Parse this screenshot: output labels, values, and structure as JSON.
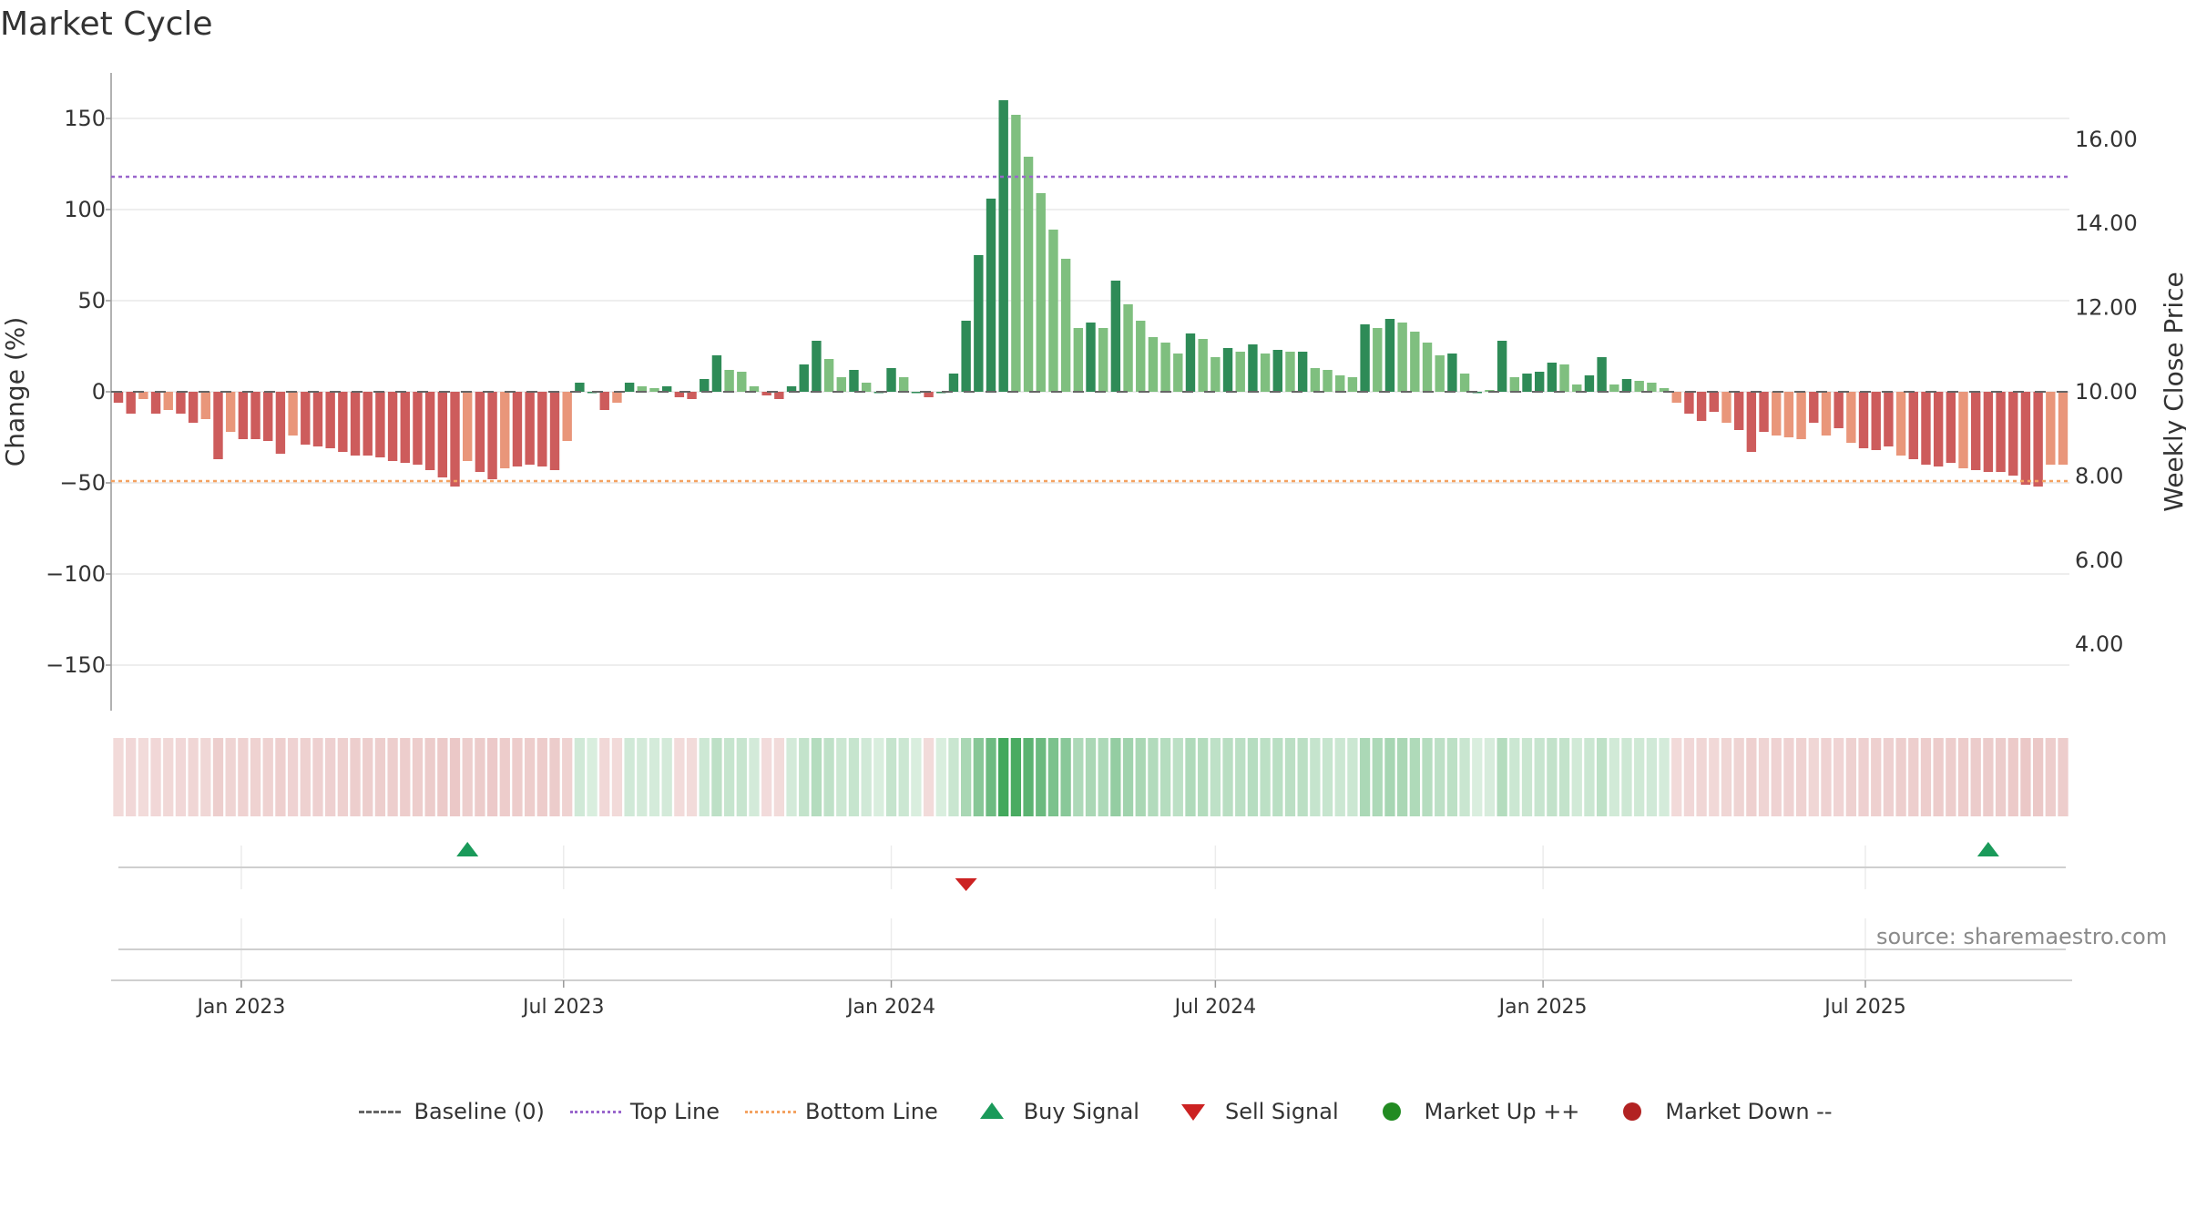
{
  "title": "Market Cycle",
  "source": "source: sharemaestro.com",
  "chart_data": {
    "type": "bar",
    "title": "Market Cycle",
    "ylabel": "Change (%)",
    "y2label": "Weekly Close Price",
    "ylim": [
      -175,
      175
    ],
    "y2lim": [
      2.6,
      17.25
    ],
    "yticks": [
      150,
      100,
      50,
      0,
      -50,
      -100,
      -150
    ],
    "ytick_labels": [
      "150",
      "100",
      "50",
      "0",
      "−100",
      "−150"
    ],
    "ytick_labels_all": [
      "150",
      "100",
      "50",
      "0",
      "−50",
      "−100",
      "−150"
    ],
    "y2ticks": [
      16,
      14,
      12,
      10,
      8,
      6,
      4
    ],
    "y2tick_labels": [
      "16.00",
      "14.00",
      "12.00",
      "10.00",
      "8.00",
      "6.00",
      "4.00"
    ],
    "x_start": "2022-10-24",
    "x_end": "2025-10-06",
    "x_step_days": 7,
    "xtick_dates": [
      "2023-01-01",
      "2023-07-01",
      "2024-01-01",
      "2024-07-01",
      "2025-01-01",
      "2025-07-01"
    ],
    "xtick_labels": [
      "Jan 2023",
      "Jul 2023",
      "Jan 2024",
      "Jul 2024",
      "Jan 2025",
      "Jul 2025"
    ],
    "top_line": 118,
    "bottom_line": -49,
    "baseline": 0,
    "values": [
      -6,
      -12,
      -4,
      -12,
      -10,
      -12,
      -17,
      -15,
      -37,
      -22,
      -26,
      -26,
      -27,
      -34,
      -24,
      -29,
      -30,
      -31,
      -33,
      -35,
      -35,
      -36,
      -38,
      -39,
      -40,
      -43,
      -47,
      -52,
      -38,
      -44,
      -48,
      -42,
      -41,
      -40,
      -41,
      -43,
      -27,
      5,
      0,
      -10,
      -6,
      5,
      3,
      2,
      3,
      -3,
      -4,
      7,
      20,
      12,
      11,
      3,
      -2,
      -4,
      3,
      15,
      28,
      18,
      8,
      12,
      5,
      0,
      13,
      8,
      0,
      -3,
      0,
      10,
      39,
      75,
      106,
      160,
      152,
      129,
      109,
      89,
      73,
      35,
      38,
      35,
      61,
      48,
      39,
      30,
      27,
      21,
      32,
      29,
      19,
      24,
      22,
      26,
      21,
      23,
      22,
      22,
      13,
      12,
      9,
      8,
      37,
      35,
      40,
      38,
      33,
      27,
      20,
      21,
      10,
      0,
      1,
      28,
      8,
      10,
      11,
      16,
      15,
      4,
      9,
      19,
      4,
      7,
      6,
      5,
      2,
      -6,
      -12,
      -16,
      -11,
      -17,
      -21,
      -33,
      -22,
      -24,
      -25,
      -26,
      -17,
      -24,
      -20,
      -28,
      -31,
      -32,
      -30,
      -35,
      -37,
      -40,
      -41,
      -39,
      -42,
      -43,
      -44,
      -44,
      -46,
      -51,
      -52,
      -40,
      -40
    ],
    "bar_style": [
      1,
      1,
      2,
      1,
      2,
      1,
      1,
      2,
      1,
      2,
      1,
      1,
      1,
      1,
      2,
      1,
      1,
      1,
      1,
      1,
      1,
      1,
      1,
      1,
      1,
      1,
      1,
      1,
      2,
      1,
      1,
      2,
      1,
      1,
      1,
      1,
      2,
      1,
      1,
      1,
      2,
      1,
      2,
      2,
      1,
      1,
      1,
      1,
      1,
      2,
      2,
      2,
      1,
      1,
      1,
      1,
      1,
      2,
      2,
      1,
      2,
      1,
      1,
      2,
      1,
      1,
      1,
      1,
      1,
      1,
      1,
      1,
      2,
      2,
      2,
      2,
      2,
      2,
      1,
      2,
      1,
      2,
      2,
      2,
      2,
      2,
      1,
      2,
      2,
      1,
      2,
      1,
      2,
      1,
      2,
      1,
      2,
      2,
      2,
      2,
      1,
      2,
      1,
      2,
      2,
      2,
      2,
      1,
      2,
      1,
      2,
      1,
      2,
      1,
      1,
      1,
      2,
      2,
      1,
      1,
      2,
      1,
      2,
      2,
      2,
      2,
      1,
      1,
      1,
      2,
      1,
      1,
      1,
      2,
      2,
      2,
      1,
      2,
      1,
      2,
      1,
      1,
      1,
      2,
      1,
      1,
      1,
      1,
      2,
      1,
      1,
      1,
      1,
      1,
      1,
      2,
      2,
      2
    ],
    "price_line_present": false,
    "buy_signals": [
      "2023-05-08",
      "2025-09-08"
    ],
    "sell_signals": [
      "2024-02-12"
    ],
    "legend": [
      "Baseline (0)",
      "Top Line",
      "Bottom Line",
      "Buy Signal",
      "Sell Signal",
      "Market Up ++",
      "Market Down --"
    ],
    "legend_position": "bottom-center",
    "grid": true
  },
  "colors": {
    "up_dark": "#2e8b57",
    "up_light": "#7fbf7f",
    "down_dark": "#cd5c5c",
    "down_light": "#e9967a",
    "top_line": "#9966cc",
    "bottom_line": "#f4a261",
    "baseline": "#666666",
    "buy": "#1a9a5a",
    "sell": "#cc2222",
    "market_up": "#228b22",
    "market_down": "#b22222",
    "grid": "#e8e8e8"
  },
  "legend": {
    "baseline": "Baseline (0)",
    "top_line": "Top Line",
    "bottom_line": "Bottom Line",
    "buy": "Buy Signal",
    "sell": "Sell Signal",
    "market_up": "Market Up ++",
    "market_down": "Market Down --"
  }
}
